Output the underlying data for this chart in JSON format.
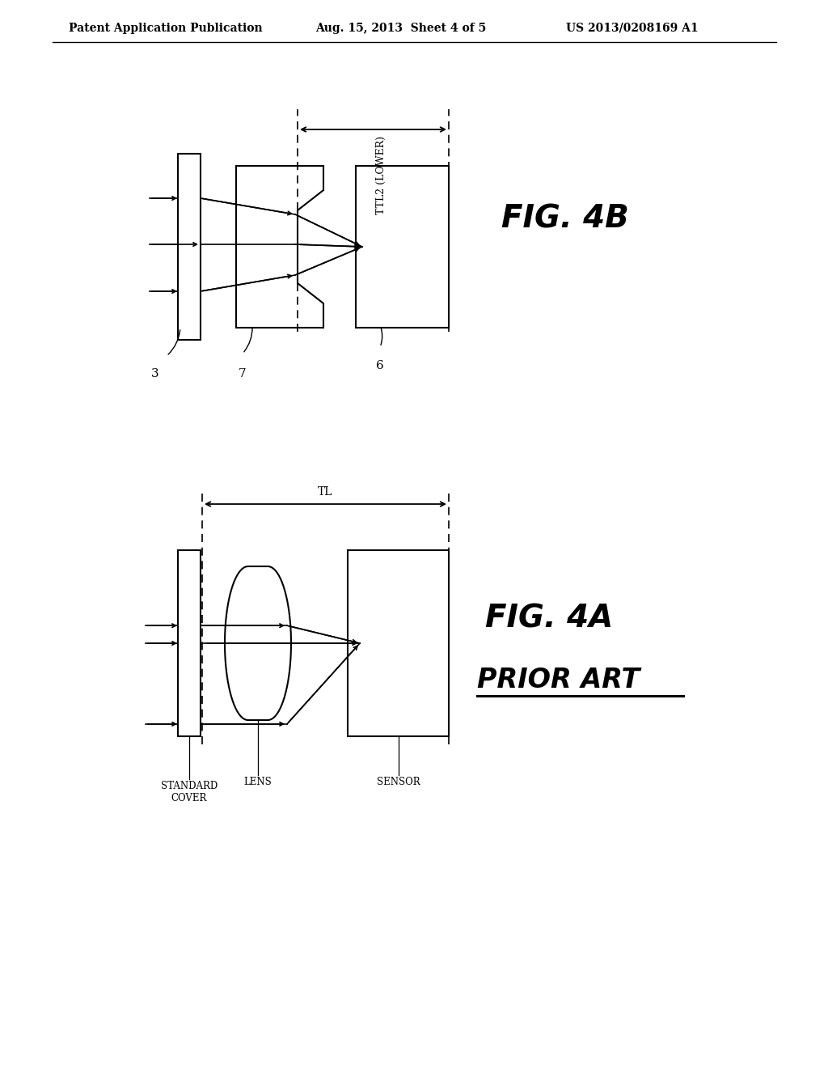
{
  "bg_color": "#ffffff",
  "line_color": "#000000",
  "header_left": "Patent Application Publication",
  "header_mid": "Aug. 15, 2013  Sheet 4 of 5",
  "header_right": "US 2013/0208169 A1",
  "fig4b_label": "FIG. 4B",
  "fig4a_label": "FIG. 4A",
  "fig4a_sublabel": "PRIOR ART",
  "label_3": "3",
  "label_7": "7",
  "label_6": "6",
  "label_ttl2": "TTL2 (LOWER)",
  "label_tl": "TL",
  "label_standard_cover": "STANDARD\nCOVER",
  "label_lens": "LENS",
  "label_sensor": "SENSOR"
}
